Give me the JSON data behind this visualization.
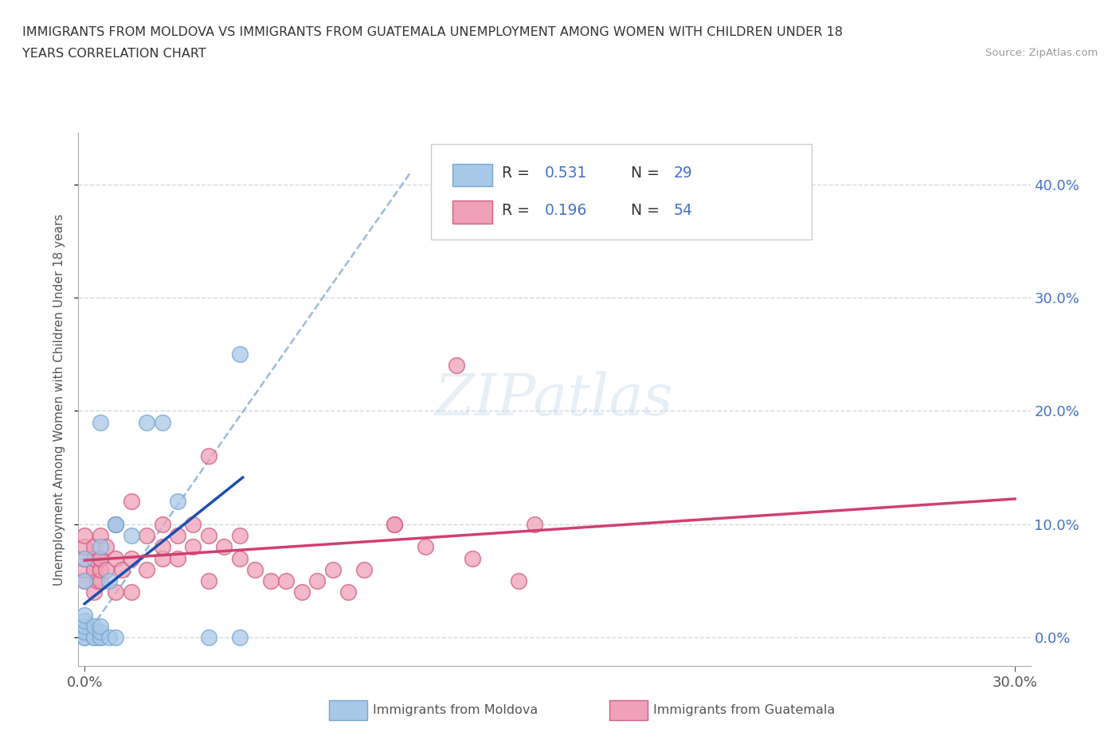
{
  "title_line1": "IMMIGRANTS FROM MOLDOVA VS IMMIGRANTS FROM GUATEMALA UNEMPLOYMENT AMONG WOMEN WITH CHILDREN UNDER 18",
  "title_line2": "YEARS CORRELATION CHART",
  "source": "Source: ZipAtlas.com",
  "ylabel": "Unemployment Among Women with Children Under 18 years",
  "xlim": [
    -0.002,
    0.305
  ],
  "ylim": [
    -0.025,
    0.445
  ],
  "yticks": [
    0.0,
    0.1,
    0.2,
    0.3,
    0.4
  ],
  "xticks": [
    0.0,
    0.3
  ],
  "moldova_color": "#a8c8e8",
  "moldova_edge": "#78a8d0",
  "guatemala_color": "#f0a0b8",
  "guatemala_edge": "#d06080",
  "trend_moldova_color": "#1a50b0",
  "trend_guatemala_color": "#d04070",
  "dashed_line_color": "#90b4d8",
  "legend_text_color": "#333333",
  "legend_val_color": "#4472c4",
  "R_moldova": 0.531,
  "N_moldova": 29,
  "R_guatemala": 0.196,
  "N_guatemala": 54,
  "moldova_x": [
    0.0,
    0.0,
    0.0,
    0.0,
    0.0,
    0.0,
    0.0,
    0.0,
    0.003,
    0.003,
    0.003,
    0.005,
    0.005,
    0.005,
    0.005,
    0.005,
    0.005,
    0.008,
    0.008,
    0.01,
    0.01,
    0.01,
    0.015,
    0.02,
    0.025,
    0.03,
    0.04,
    0.05,
    0.05
  ],
  "moldova_y": [
    0.0,
    0.0,
    0.005,
    0.01,
    0.015,
    0.02,
    0.05,
    0.07,
    0.0,
    0.0,
    0.01,
    0.0,
    0.0,
    0.005,
    0.01,
    0.08,
    0.19,
    0.0,
    0.05,
    0.0,
    0.1,
    0.1,
    0.09,
    0.19,
    0.19,
    0.12,
    0.0,
    0.0,
    0.25
  ],
  "guatemala_x": [
    0.0,
    0.0,
    0.0,
    0.0,
    0.0,
    0.003,
    0.003,
    0.003,
    0.003,
    0.004,
    0.005,
    0.005,
    0.005,
    0.005,
    0.005,
    0.007,
    0.007,
    0.01,
    0.01,
    0.01,
    0.012,
    0.015,
    0.015,
    0.015,
    0.02,
    0.02,
    0.025,
    0.025,
    0.025,
    0.03,
    0.03,
    0.035,
    0.035,
    0.04,
    0.04,
    0.04,
    0.045,
    0.05,
    0.05,
    0.055,
    0.06,
    0.065,
    0.07,
    0.075,
    0.08,
    0.085,
    0.09,
    0.1,
    0.1,
    0.11,
    0.12,
    0.125,
    0.14,
    0.145
  ],
  "guatemala_y": [
    0.05,
    0.06,
    0.07,
    0.08,
    0.09,
    0.04,
    0.06,
    0.07,
    0.08,
    0.05,
    0.05,
    0.06,
    0.07,
    0.07,
    0.09,
    0.06,
    0.08,
    0.04,
    0.07,
    0.1,
    0.06,
    0.04,
    0.07,
    0.12,
    0.06,
    0.09,
    0.07,
    0.08,
    0.1,
    0.07,
    0.09,
    0.08,
    0.1,
    0.05,
    0.09,
    0.16,
    0.08,
    0.07,
    0.09,
    0.06,
    0.05,
    0.05,
    0.04,
    0.05,
    0.06,
    0.04,
    0.06,
    0.1,
    0.1,
    0.08,
    0.24,
    0.07,
    0.05,
    0.1
  ],
  "watermark_text": "ZIPatlas",
  "bg_color": "#ffffff",
  "grid_color": "#d0d8e0",
  "bottom_legend_mol": "Immigrants from Moldova",
  "bottom_legend_gua": "Immigrants from Guatemala"
}
